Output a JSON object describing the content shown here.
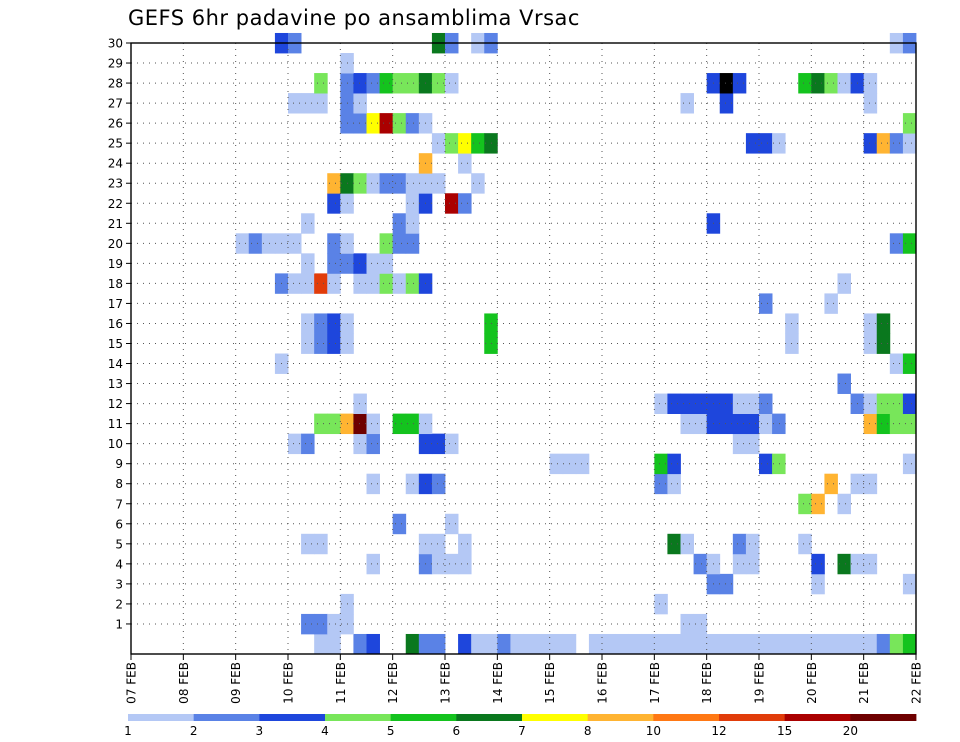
{
  "chart_data": {
    "type": "heatmap",
    "title": "GEFS 6hr padavine po ansamblima Vrsac",
    "y_ticks": [
      "1",
      "2",
      "3",
      "4",
      "5",
      "6",
      "7",
      "8",
      "9",
      "10",
      "11",
      "12",
      "13",
      "14",
      "15",
      "16",
      "17",
      "18",
      "19",
      "20",
      "21",
      "22",
      "23",
      "24",
      "25",
      "26",
      "27",
      "28",
      "29",
      "30"
    ],
    "x_ticks": [
      "07 FEB",
      "08 FEB",
      "09 FEB",
      "10 FEB",
      "11 FEB",
      "12 FEB",
      "13 FEB",
      "14 FEB",
      "15 FEB",
      "16 FEB",
      "17 FEB",
      "18 FEB",
      "19 FEB",
      "20 FEB",
      "21 FEB",
      "22 FEB"
    ],
    "x_unit": "6h steps from 07 FEB 00Z",
    "grid": true,
    "colorbar": {
      "labels": [
        "1",
        "2",
        "3",
        "4",
        "5",
        "6",
        "7",
        "8",
        "10",
        "12",
        "15",
        "20"
      ],
      "colors": [
        "#b4c8f5",
        "#5a82e6",
        "#1e46dc",
        "#78e65a",
        "#14c31e",
        "#0a781e",
        "#ffff00",
        "#ffb432",
        "#ff7814",
        "#e13c0a",
        "#aa0000",
        "#6e0000"
      ]
    },
    "cells": [
      [
        0,
        14,
        1
      ],
      [
        0,
        15,
        1
      ],
      [
        0,
        17,
        2
      ],
      [
        0,
        18,
        3
      ],
      [
        0,
        21,
        6
      ],
      [
        0,
        22,
        2
      ],
      [
        0,
        23,
        2
      ],
      [
        0,
        25,
        3
      ],
      [
        0,
        26,
        1
      ],
      [
        0,
        27,
        1
      ],
      [
        0,
        28,
        2
      ],
      [
        0,
        29,
        1
      ],
      [
        0,
        30,
        1
      ],
      [
        0,
        31,
        1
      ],
      [
        0,
        32,
        1
      ],
      [
        0,
        33,
        1
      ],
      [
        0,
        35,
        1
      ],
      [
        0,
        36,
        1
      ],
      [
        0,
        37,
        1
      ],
      [
        0,
        38,
        1
      ],
      [
        0,
        39,
        1
      ],
      [
        0,
        40,
        1
      ],
      [
        0,
        41,
        1
      ],
      [
        0,
        42,
        1
      ],
      [
        0,
        43,
        1
      ],
      [
        0,
        44,
        1
      ],
      [
        0,
        45,
        1
      ],
      [
        0,
        46,
        1
      ],
      [
        0,
        47,
        1
      ],
      [
        0,
        48,
        1
      ],
      [
        0,
        49,
        1
      ],
      [
        0,
        50,
        1
      ],
      [
        0,
        51,
        1
      ],
      [
        0,
        52,
        1
      ],
      [
        0,
        53,
        1
      ],
      [
        0,
        54,
        1
      ],
      [
        0,
        55,
        1
      ],
      [
        0,
        56,
        1
      ],
      [
        0,
        57,
        2
      ],
      [
        0,
        58,
        4
      ],
      [
        0,
        59,
        5
      ],
      [
        1,
        13,
        2
      ],
      [
        1,
        14,
        2
      ],
      [
        1,
        15,
        1
      ],
      [
        1,
        16,
        1
      ],
      [
        1,
        42,
        1
      ],
      [
        1,
        43,
        1
      ],
      [
        2,
        16,
        1
      ],
      [
        2,
        40,
        1
      ],
      [
        3,
        44,
        2
      ],
      [
        3,
        45,
        2
      ],
      [
        3,
        52,
        1
      ],
      [
        3,
        59,
        1
      ],
      [
        4,
        18,
        1
      ],
      [
        4,
        22,
        2
      ],
      [
        4,
        23,
        1
      ],
      [
        4,
        24,
        1
      ],
      [
        4,
        25,
        1
      ],
      [
        4,
        43,
        2
      ],
      [
        4,
        44,
        1
      ],
      [
        4,
        46,
        1
      ],
      [
        4,
        47,
        1
      ],
      [
        4,
        52,
        3
      ],
      [
        4,
        54,
        6
      ],
      [
        4,
        55,
        1
      ],
      [
        4,
        56,
        1
      ],
      [
        5,
        13,
        1
      ],
      [
        5,
        14,
        1
      ],
      [
        5,
        22,
        1
      ],
      [
        5,
        23,
        1
      ],
      [
        5,
        25,
        1
      ],
      [
        5,
        41,
        6
      ],
      [
        5,
        42,
        1
      ],
      [
        5,
        46,
        2
      ],
      [
        5,
        47,
        1
      ],
      [
        5,
        51,
        1
      ],
      [
        6,
        20,
        2
      ],
      [
        6,
        24,
        1
      ],
      [
        7,
        51,
        4
      ],
      [
        7,
        52,
        8
      ],
      [
        7,
        54,
        1
      ],
      [
        8,
        18,
        1
      ],
      [
        8,
        21,
        1
      ],
      [
        8,
        22,
        3
      ],
      [
        8,
        23,
        2
      ],
      [
        8,
        40,
        2
      ],
      [
        8,
        41,
        1
      ],
      [
        8,
        53,
        8
      ],
      [
        8,
        55,
        1
      ],
      [
        8,
        56,
        1
      ],
      [
        9,
        32,
        1
      ],
      [
        9,
        33,
        1
      ],
      [
        9,
        34,
        1
      ],
      [
        9,
        40,
        5
      ],
      [
        9,
        41,
        3
      ],
      [
        9,
        48,
        3
      ],
      [
        9,
        49,
        4
      ],
      [
        9,
        59,
        1
      ],
      [
        10,
        12,
        1
      ],
      [
        10,
        13,
        2
      ],
      [
        10,
        17,
        1
      ],
      [
        10,
        18,
        2
      ],
      [
        10,
        22,
        3
      ],
      [
        10,
        23,
        3
      ],
      [
        10,
        24,
        1
      ],
      [
        10,
        46,
        1
      ],
      [
        10,
        47,
        1
      ],
      [
        11,
        14,
        4
      ],
      [
        11,
        15,
        4
      ],
      [
        11,
        16,
        8
      ],
      [
        11,
        17,
        12
      ],
      [
        11,
        18,
        1
      ],
      [
        11,
        20,
        5
      ],
      [
        11,
        21,
        5
      ],
      [
        11,
        22,
        1
      ],
      [
        11,
        42,
        1
      ],
      [
        11,
        43,
        1
      ],
      [
        11,
        44,
        3
      ],
      [
        11,
        45,
        3
      ],
      [
        11,
        46,
        3
      ],
      [
        11,
        47,
        3
      ],
      [
        11,
        48,
        1
      ],
      [
        11,
        49,
        2
      ],
      [
        11,
        56,
        8
      ],
      [
        11,
        57,
        5
      ],
      [
        11,
        58,
        4
      ],
      [
        11,
        59,
        4
      ],
      [
        12,
        17,
        1
      ],
      [
        12,
        40,
        1
      ],
      [
        12,
        41,
        3
      ],
      [
        12,
        42,
        3
      ],
      [
        12,
        43,
        3
      ],
      [
        12,
        44,
        3
      ],
      [
        12,
        45,
        3
      ],
      [
        12,
        46,
        1
      ],
      [
        12,
        47,
        1
      ],
      [
        12,
        48,
        2
      ],
      [
        12,
        55,
        2
      ],
      [
        12,
        56,
        1
      ],
      [
        12,
        57,
        4
      ],
      [
        12,
        58,
        4
      ],
      [
        12,
        59,
        3
      ],
      [
        13,
        54,
        2
      ],
      [
        14,
        11,
        1
      ],
      [
        14,
        58,
        1
      ],
      [
        14,
        59,
        5
      ],
      [
        15,
        13,
        1
      ],
      [
        15,
        14,
        2
      ],
      [
        15,
        15,
        3
      ],
      [
        15,
        16,
        1
      ],
      [
        15,
        27,
        5
      ],
      [
        15,
        50,
        1
      ],
      [
        15,
        56,
        1
      ],
      [
        15,
        57,
        6
      ],
      [
        16,
        13,
        1
      ],
      [
        16,
        14,
        2
      ],
      [
        16,
        15,
        3
      ],
      [
        16,
        16,
        1
      ],
      [
        16,
        27,
        5
      ],
      [
        16,
        50,
        1
      ],
      [
        16,
        56,
        1
      ],
      [
        16,
        57,
        6
      ],
      [
        17,
        48,
        2
      ],
      [
        17,
        53,
        1
      ],
      [
        18,
        11,
        2
      ],
      [
        18,
        12,
        1
      ],
      [
        18,
        13,
        1
      ],
      [
        18,
        14,
        10
      ],
      [
        18,
        15,
        1
      ],
      [
        18,
        17,
        1
      ],
      [
        18,
        18,
        1
      ],
      [
        18,
        19,
        4
      ],
      [
        18,
        20,
        1
      ],
      [
        18,
        21,
        4
      ],
      [
        18,
        22,
        3
      ],
      [
        18,
        54,
        1
      ],
      [
        19,
        13,
        1
      ],
      [
        19,
        15,
        2
      ],
      [
        19,
        16,
        2
      ],
      [
        19,
        17,
        3
      ],
      [
        19,
        18,
        1
      ],
      [
        19,
        19,
        1
      ],
      [
        20,
        8,
        1
      ],
      [
        20,
        9,
        2
      ],
      [
        20,
        10,
        1
      ],
      [
        20,
        11,
        1
      ],
      [
        20,
        12,
        1
      ],
      [
        20,
        15,
        2
      ],
      [
        20,
        16,
        1
      ],
      [
        20,
        19,
        4
      ],
      [
        20,
        20,
        2
      ],
      [
        20,
        21,
        2
      ],
      [
        20,
        58,
        2
      ],
      [
        20,
        59,
        5
      ],
      [
        21,
        13,
        1
      ],
      [
        21,
        20,
        2
      ],
      [
        21,
        21,
        1
      ],
      [
        21,
        44,
        3
      ],
      [
        22,
        15,
        3
      ],
      [
        22,
        16,
        1
      ],
      [
        22,
        21,
        1
      ],
      [
        22,
        22,
        3
      ],
      [
        22,
        24,
        11
      ],
      [
        22,
        25,
        2
      ],
      [
        23,
        15,
        8
      ],
      [
        23,
        16,
        6
      ],
      [
        23,
        17,
        4
      ],
      [
        23,
        18,
        1
      ],
      [
        23,
        19,
        2
      ],
      [
        23,
        20,
        2
      ],
      [
        23,
        21,
        1
      ],
      [
        23,
        22,
        1
      ],
      [
        23,
        23,
        1
      ],
      [
        23,
        26,
        1
      ],
      [
        24,
        22,
        8
      ],
      [
        24,
        25,
        1
      ],
      [
        25,
        23,
        1
      ],
      [
        25,
        24,
        4
      ],
      [
        25,
        25,
        7
      ],
      [
        25,
        26,
        5
      ],
      [
        25,
        27,
        6
      ],
      [
        25,
        47,
        3
      ],
      [
        25,
        48,
        3
      ],
      [
        25,
        49,
        1
      ],
      [
        25,
        56,
        3
      ],
      [
        25,
        57,
        8
      ],
      [
        25,
        58,
        2
      ],
      [
        25,
        59,
        1
      ],
      [
        26,
        16,
        2
      ],
      [
        26,
        17,
        2
      ],
      [
        26,
        18,
        7
      ],
      [
        26,
        19,
        11
      ],
      [
        26,
        20,
        4
      ],
      [
        26,
        21,
        2
      ],
      [
        26,
        22,
        1
      ],
      [
        26,
        59,
        4
      ],
      [
        27,
        12,
        1
      ],
      [
        27,
        13,
        1
      ],
      [
        27,
        14,
        1
      ],
      [
        27,
        16,
        2
      ],
      [
        27,
        17,
        1
      ],
      [
        27,
        42,
        1
      ],
      [
        27,
        45,
        3
      ],
      [
        27,
        56,
        1
      ],
      [
        28,
        14,
        4
      ],
      [
        28,
        16,
        2
      ],
      [
        28,
        17,
        3
      ],
      [
        28,
        18,
        2
      ],
      [
        28,
        19,
        5
      ],
      [
        28,
        20,
        4
      ],
      [
        28,
        21,
        4
      ],
      [
        28,
        22,
        6
      ],
      [
        28,
        23,
        4
      ],
      [
        28,
        24,
        1
      ],
      [
        28,
        44,
        3
      ],
      [
        28,
        45,
        20
      ],
      [
        28,
        46,
        3
      ],
      [
        28,
        51,
        5
      ],
      [
        28,
        52,
        6
      ],
      [
        28,
        53,
        4
      ],
      [
        28,
        54,
        1
      ],
      [
        28,
        55,
        3
      ],
      [
        28,
        56,
        1
      ],
      [
        29,
        16,
        1
      ],
      [
        30,
        11,
        3
      ],
      [
        30,
        12,
        2
      ],
      [
        30,
        23,
        6
      ],
      [
        30,
        24,
        2
      ],
      [
        30,
        26,
        1
      ],
      [
        30,
        27,
        2
      ],
      [
        30,
        58,
        1
      ],
      [
        30,
        59,
        2
      ]
    ]
  }
}
